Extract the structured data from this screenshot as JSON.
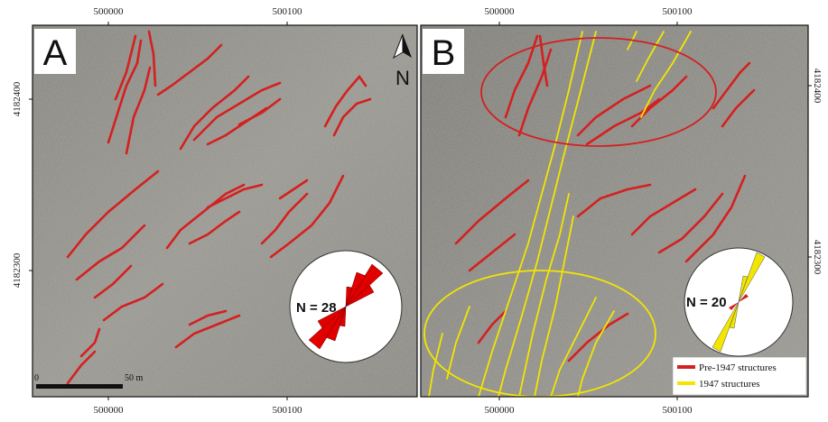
{
  "coordinates": {
    "easting": [
      "500000",
      "500100"
    ],
    "northing": [
      "4182400",
      "4182300"
    ]
  },
  "panels": [
    {
      "label": "A",
      "rose": {
        "label": "N = 28"
      }
    },
    {
      "label": "B",
      "rose": {
        "label": "N = 20"
      }
    }
  ],
  "north_arrow": "N",
  "scale_bar": [
    "0",
    "50 m"
  ],
  "legend": [
    {
      "label": "Pre-1947 structures",
      "color": "#d42020"
    },
    {
      "label": "1947 structures",
      "color": "#f2e600"
    }
  ]
}
